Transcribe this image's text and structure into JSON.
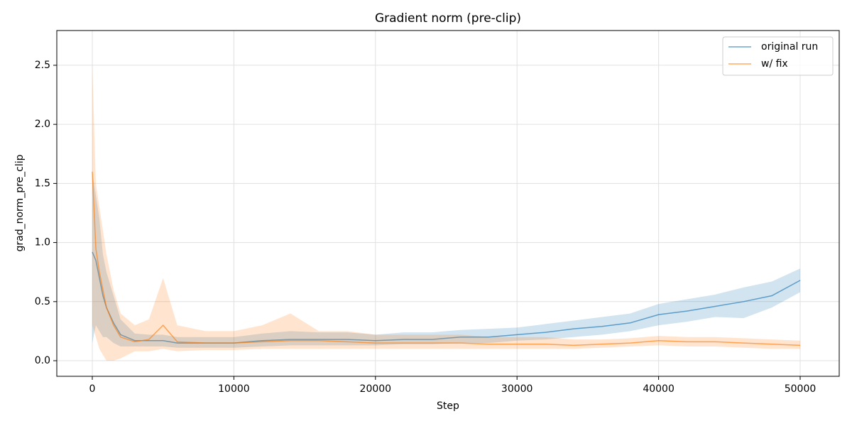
{
  "chart_data": {
    "type": "line",
    "title": "Gradient norm (pre-clip)",
    "xlabel": "Step",
    "ylabel": "grad_norm_pre_clip",
    "x": [
      0,
      250,
      500,
      750,
      1000,
      1500,
      2000,
      3000,
      4000,
      5000,
      6000,
      8000,
      10000,
      12000,
      14000,
      16000,
      18000,
      20000,
      22000,
      24000,
      26000,
      28000,
      30000,
      32000,
      34000,
      36000,
      38000,
      40000,
      42000,
      44000,
      46000,
      48000,
      50000
    ],
    "series": [
      {
        "name": "original run",
        "color": "#1f77b4",
        "values": [
          0.92,
          0.85,
          0.7,
          0.55,
          0.45,
          0.32,
          0.22,
          0.17,
          0.17,
          0.17,
          0.15,
          0.15,
          0.15,
          0.17,
          0.18,
          0.18,
          0.18,
          0.17,
          0.18,
          0.18,
          0.2,
          0.2,
          0.22,
          0.24,
          0.27,
          0.29,
          0.32,
          0.39,
          0.42,
          0.46,
          0.5,
          0.55,
          0.68
        ],
        "lower": [
          0.15,
          0.3,
          0.25,
          0.2,
          0.2,
          0.15,
          0.12,
          0.12,
          0.12,
          0.12,
          0.11,
          0.11,
          0.11,
          0.12,
          0.13,
          0.13,
          0.13,
          0.13,
          0.14,
          0.14,
          0.15,
          0.15,
          0.17,
          0.18,
          0.2,
          0.22,
          0.25,
          0.3,
          0.33,
          0.37,
          0.36,
          0.45,
          0.58
        ],
        "upper": [
          1.6,
          1.4,
          1.2,
          0.9,
          0.75,
          0.55,
          0.35,
          0.23,
          0.22,
          0.22,
          0.2,
          0.2,
          0.2,
          0.23,
          0.25,
          0.24,
          0.24,
          0.22,
          0.24,
          0.24,
          0.26,
          0.27,
          0.28,
          0.31,
          0.34,
          0.37,
          0.4,
          0.48,
          0.52,
          0.56,
          0.62,
          0.67,
          0.78
        ]
      },
      {
        "name": "w/ fix",
        "color": "#ff7f0e",
        "values": [
          1.6,
          0.95,
          0.75,
          0.6,
          0.45,
          0.3,
          0.2,
          0.16,
          0.18,
          0.3,
          0.16,
          0.15,
          0.15,
          0.16,
          0.17,
          0.17,
          0.16,
          0.15,
          0.15,
          0.15,
          0.15,
          0.14,
          0.14,
          0.14,
          0.13,
          0.14,
          0.15,
          0.17,
          0.16,
          0.16,
          0.15,
          0.14,
          0.13
        ],
        "lower": [
          0.3,
          0.2,
          0.1,
          0.05,
          0.0,
          0.0,
          0.02,
          0.08,
          0.08,
          0.1,
          0.08,
          0.09,
          0.09,
          0.1,
          0.1,
          0.1,
          0.1,
          0.1,
          0.1,
          0.1,
          0.1,
          0.1,
          0.1,
          0.1,
          0.1,
          0.11,
          0.12,
          0.13,
          0.12,
          0.12,
          0.11,
          0.1,
          0.1
        ],
        "upper": [
          2.5,
          1.5,
          1.3,
          1.1,
          0.9,
          0.6,
          0.4,
          0.3,
          0.35,
          0.7,
          0.3,
          0.25,
          0.25,
          0.3,
          0.4,
          0.25,
          0.25,
          0.22,
          0.22,
          0.22,
          0.22,
          0.2,
          0.2,
          0.2,
          0.18,
          0.18,
          0.19,
          0.21,
          0.2,
          0.2,
          0.19,
          0.18,
          0.17
        ]
      }
    ],
    "xlim": [
      -2508,
      52758
    ],
    "ylim": [
      -0.132,
      2.794
    ],
    "xticks": [
      0,
      10000,
      20000,
      30000,
      40000,
      50000
    ],
    "yticks": [
      {
        "value": 0,
        "label": "0.0"
      },
      0.5,
      {
        "value": 1,
        "label": "1.0"
      },
      1.5,
      {
        "value": 2,
        "label": "2.0"
      },
      2.5
    ],
    "grid": true,
    "legend": "upper right"
  }
}
